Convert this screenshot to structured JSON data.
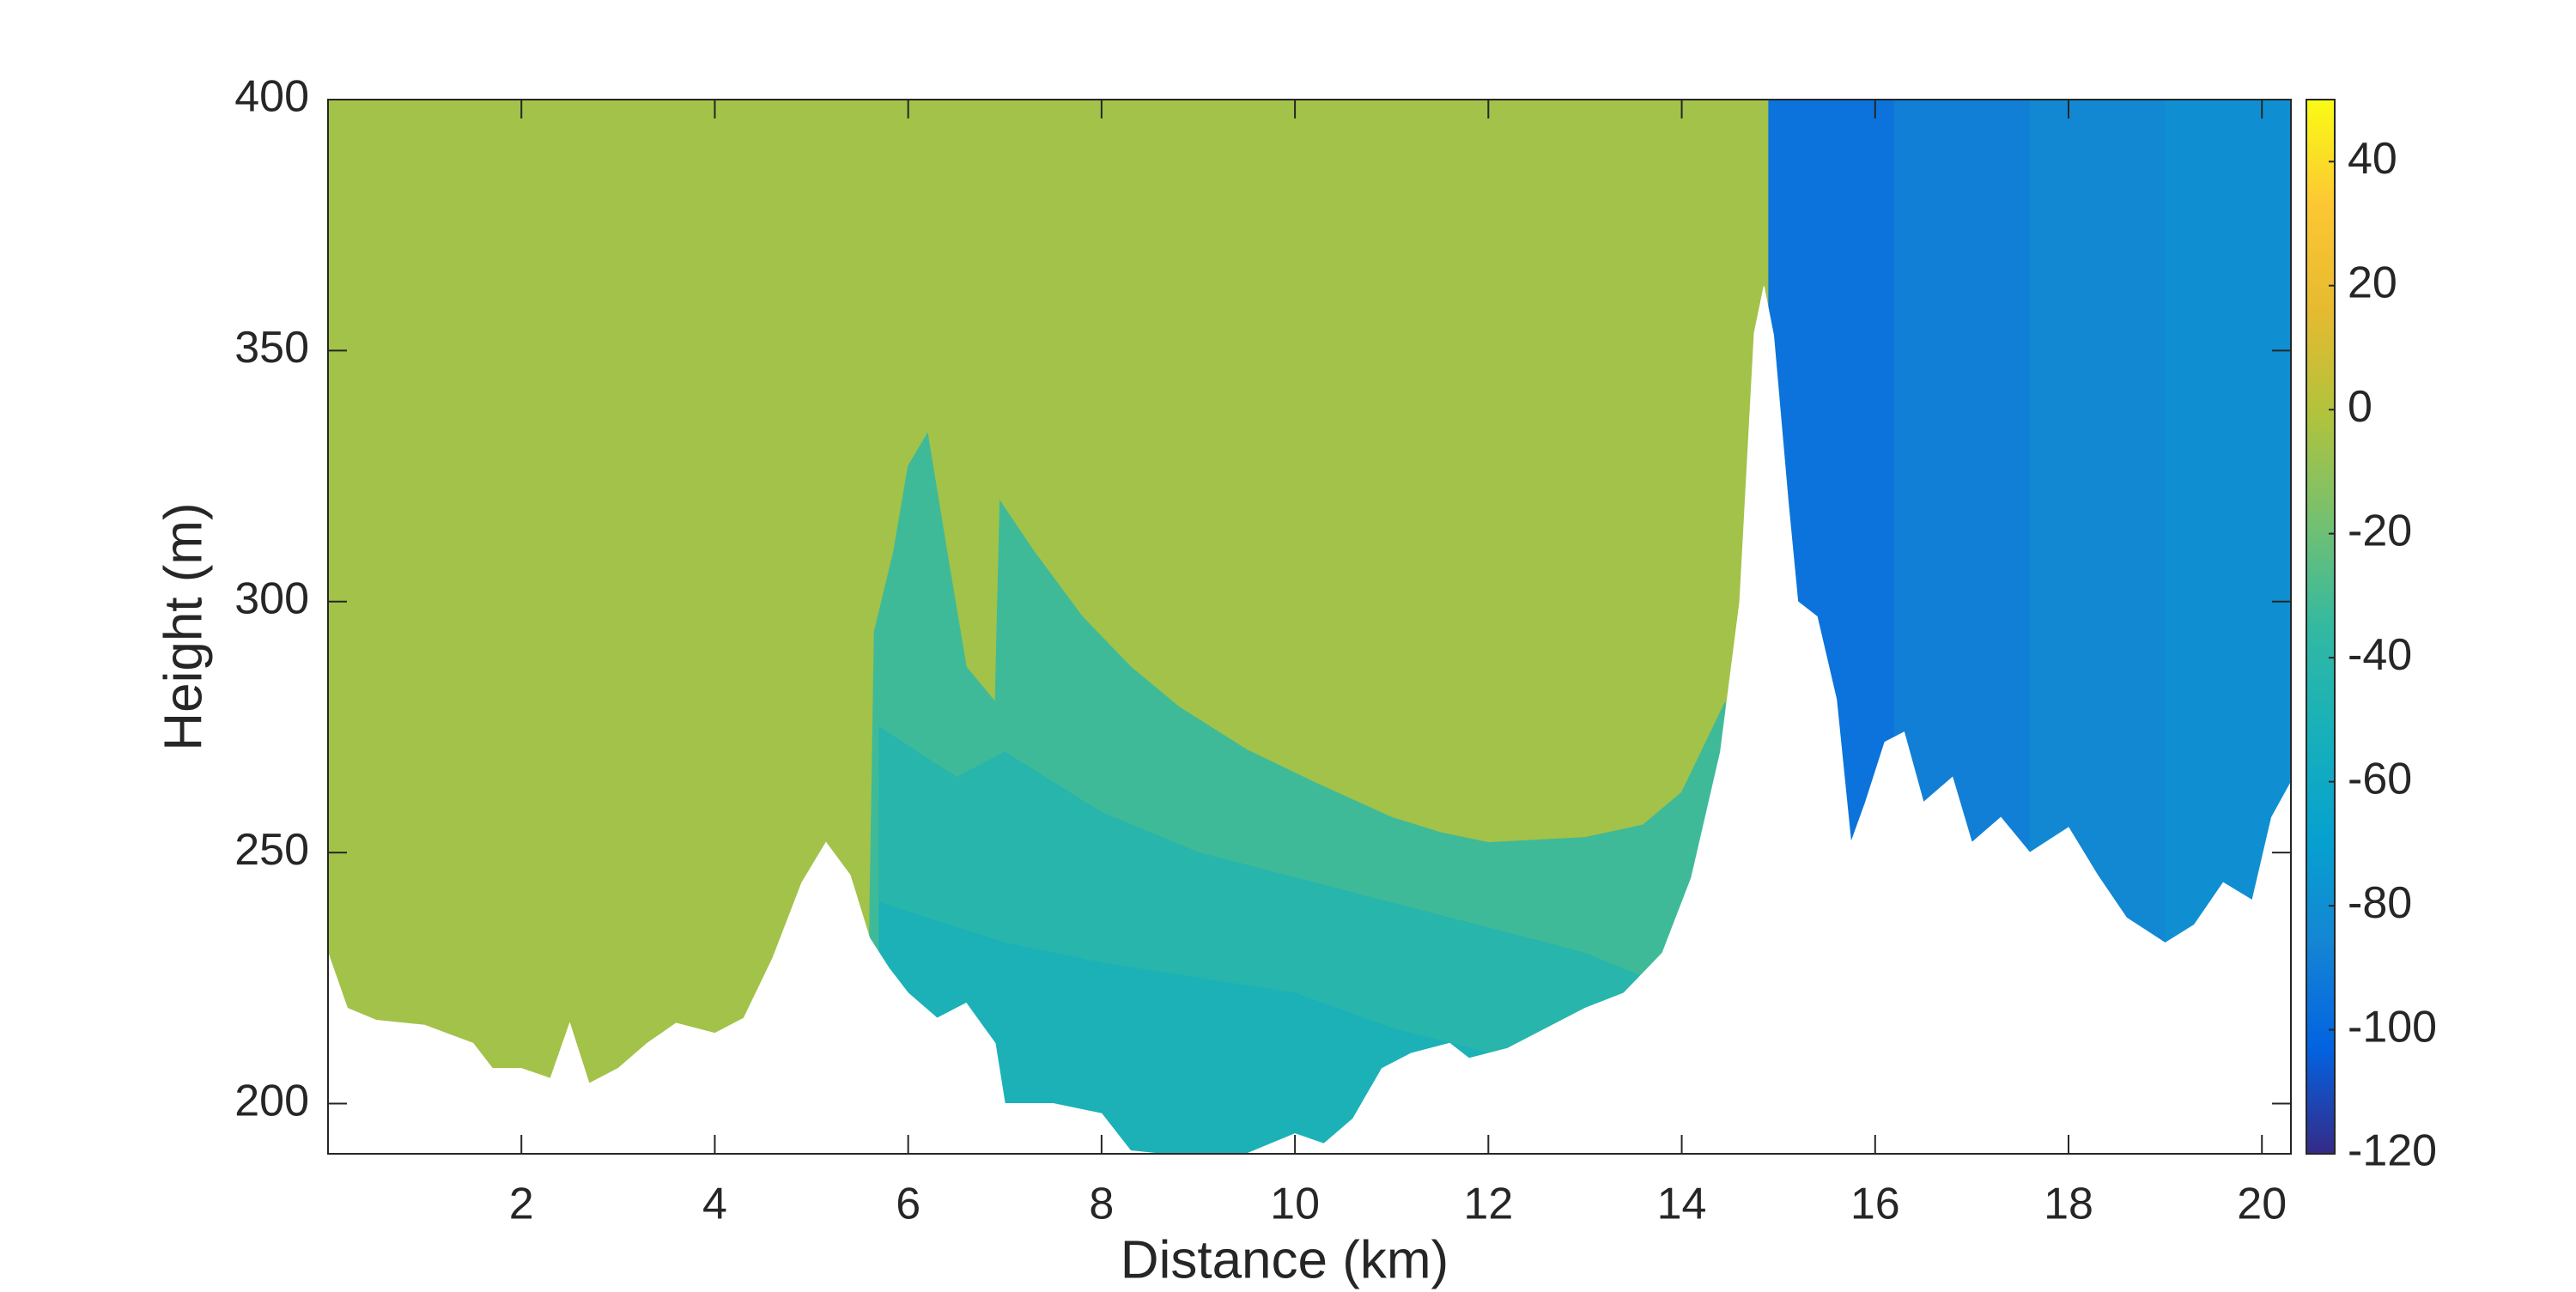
{
  "chart_data": {
    "type": "filled-section",
    "xlabel": "Distance (km)",
    "ylabel": "Height (m)",
    "xlim": [
      0,
      20.3
    ],
    "ylim": [
      190,
      400
    ],
    "xticks": [
      2,
      4,
      6,
      8,
      10,
      12,
      14,
      16,
      18,
      20
    ],
    "yticks": [
      200,
      250,
      300,
      350,
      400
    ],
    "colormap": "parula",
    "clim": [
      -120,
      50
    ],
    "cticks": [
      -120,
      -100,
      -80,
      -60,
      -40,
      -20,
      0,
      20,
      40
    ],
    "regions": [
      {
        "value": -5,
        "x": [
          0,
          14.9
        ],
        "top": [
          400,
          400
        ]
      },
      {
        "value": -32,
        "x": [
          5.6,
          5.65,
          5.85,
          6.0,
          6.2,
          6.4,
          6.6,
          6.9,
          6.95,
          7.3,
          7.8,
          8.3,
          8.8,
          9.5,
          10.2,
          11.0,
          11.5,
          12.0,
          13.0,
          13.6,
          14.0,
          14.3,
          14.45
        ],
        "top": [
          234,
          294,
          310,
          327,
          333.5,
          310,
          287,
          280,
          320,
          310,
          297,
          287,
          279,
          270.5,
          264,
          257,
          254,
          252,
          253,
          255.5,
          262,
          274,
          280
        ]
      },
      {
        "value": -42,
        "x": [
          5.7,
          6.5,
          7.0,
          8.0,
          9.0,
          10.0,
          11.0,
          12.0,
          13.0,
          14.0,
          14.3
        ],
        "top": [
          275,
          265,
          270,
          258,
          250,
          245,
          240,
          235,
          230,
          222,
          215
        ]
      },
      {
        "value": -50,
        "x": [
          5.7,
          7.0,
          8.0,
          9.0,
          10.0,
          11.0,
          12.0
        ],
        "top": [
          240,
          232,
          228,
          225,
          222,
          215,
          210
        ]
      },
      {
        "value": -95,
        "x": [
          14.9,
          16.2
        ],
        "top": [
          400,
          400
        ]
      },
      {
        "value": -89,
        "x": [
          16.2,
          17.6
        ],
        "top": [
          400,
          400
        ]
      },
      {
        "value": -84,
        "x": [
          17.6,
          19.0
        ],
        "top": [
          400,
          400
        ]
      },
      {
        "value": -80,
        "x": [
          19.0,
          20.3
        ],
        "top": [
          400,
          400
        ]
      }
    ],
    "terrain": {
      "x": [
        0,
        0.2,
        0.5,
        1.0,
        1.5,
        1.7,
        2.0,
        2.3,
        2.5,
        2.7,
        3.0,
        3.3,
        3.6,
        4.0,
        4.3,
        4.6,
        4.9,
        5.15,
        5.4,
        5.6,
        5.8,
        6.0,
        6.3,
        6.6,
        6.9,
        7.0,
        7.5,
        8.0,
        8.3,
        8.6,
        9.0,
        9.5,
        10.0,
        10.3,
        10.6,
        10.9,
        11.2,
        11.6,
        11.8,
        12.2,
        12.6,
        13.0,
        13.4,
        13.8,
        14.1,
        14.4,
        14.6,
        14.75,
        14.85,
        14.95,
        15.1,
        15.2,
        15.4,
        15.6,
        15.75,
        15.9,
        16.1,
        16.3,
        16.5,
        16.8,
        17.0,
        17.3,
        17.6,
        18.0,
        18.3,
        18.6,
        19.0,
        19.3,
        19.6,
        19.9,
        20.1,
        20.3
      ],
      "height": [
        230,
        219,
        216.6,
        215.6,
        212,
        207,
        207,
        205,
        216,
        204,
        207,
        212,
        216,
        214,
        217,
        229,
        244,
        252,
        245.5,
        233,
        227,
        222,
        217,
        220,
        212,
        200,
        200,
        198,
        190.6,
        190,
        190,
        190,
        194,
        192,
        197,
        207,
        210,
        212,
        209,
        211,
        215,
        219,
        222,
        230,
        245,
        270,
        300,
        353.5,
        362.8,
        353,
        320,
        300,
        297,
        280.5,
        252,
        260,
        272,
        274,
        260,
        265,
        252,
        257,
        250,
        255,
        245.5,
        237,
        232,
        235.6,
        244,
        240.5,
        257,
        264
      ]
    }
  }
}
